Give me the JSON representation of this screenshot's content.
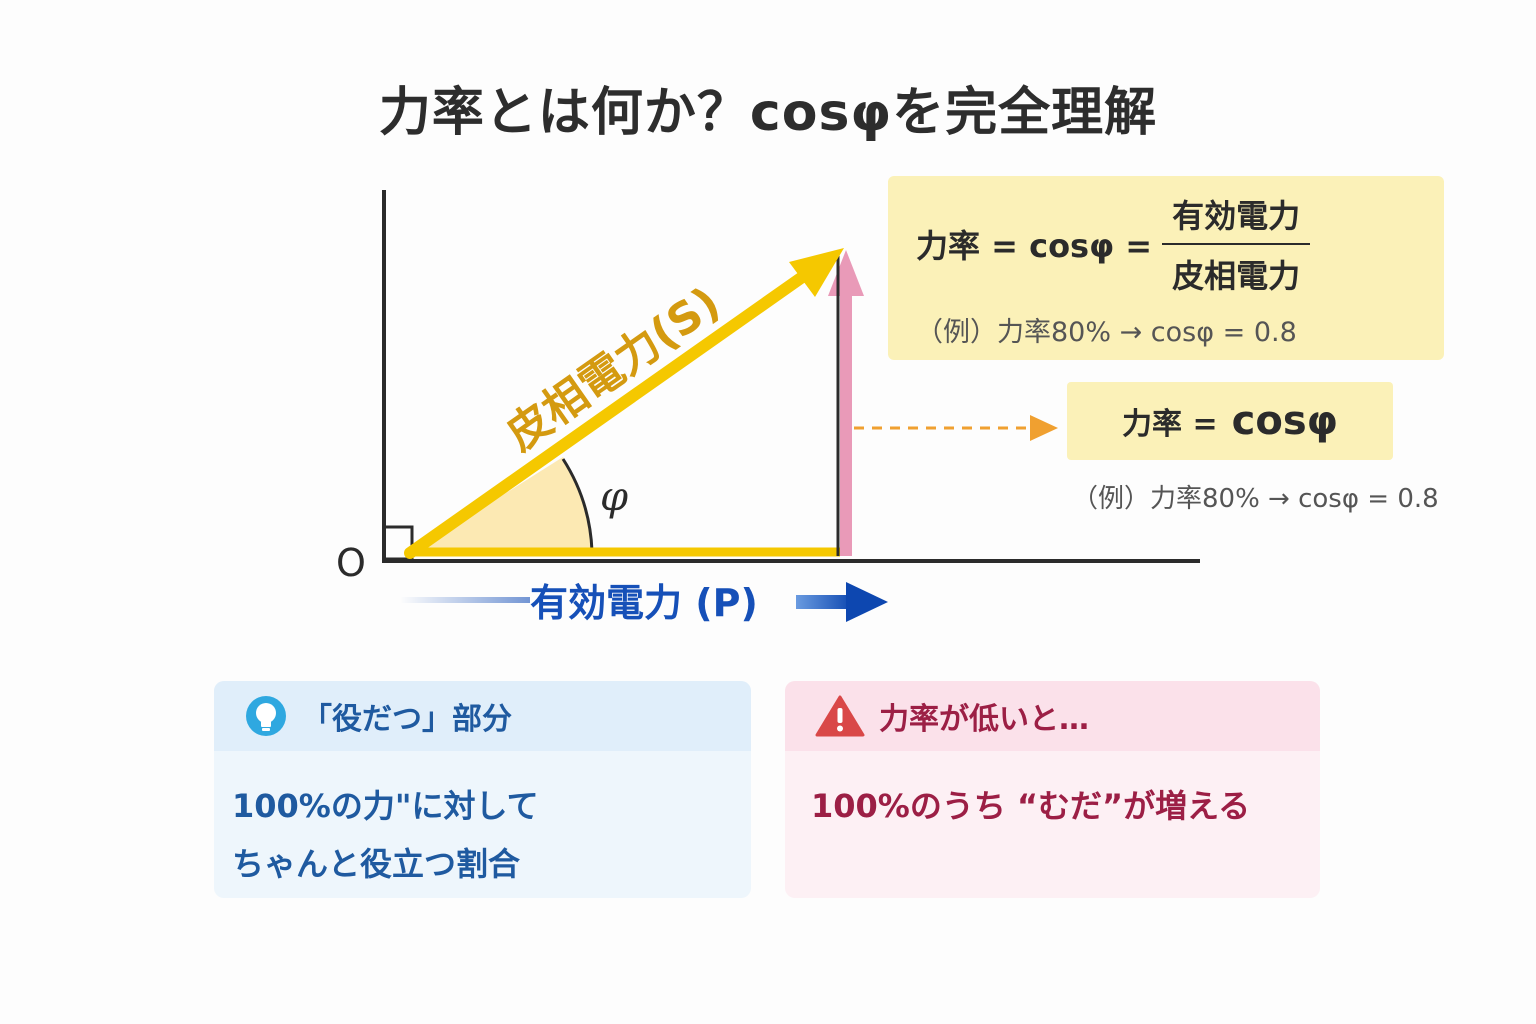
{
  "title": "力率とは何か？cosφを完全理解",
  "diagram": {
    "origin_label": "O",
    "angle_label": "φ",
    "apparent_power_label": "皮相電力(S)",
    "active_power_label": "有効電力 (P)",
    "colors": {
      "apparent": "#f5c800",
      "active": "#1650b8",
      "reactive": "#e99ab8",
      "dashed": "#f0a030"
    }
  },
  "formula_box": {
    "lhs": "力率 = cosφ =",
    "numerator": "有効電力",
    "denominator": "皮相電力",
    "example": "（例）力率80% → cosφ = 0.8"
  },
  "small_box": {
    "label": "力率 =",
    "value": "cosφ",
    "example": "（例）力率80% → cosφ = 0.8"
  },
  "cards": {
    "useful": {
      "heading": "「役だつ」部分",
      "line1": "100%の力\"に対して",
      "line2": "ちゃんと役立つ割合",
      "icon": "lightbulb-icon"
    },
    "low": {
      "heading": "力率が低いと…",
      "line1": "100%のうち “むだ”が増える",
      "icon": "warning-icon"
    }
  }
}
